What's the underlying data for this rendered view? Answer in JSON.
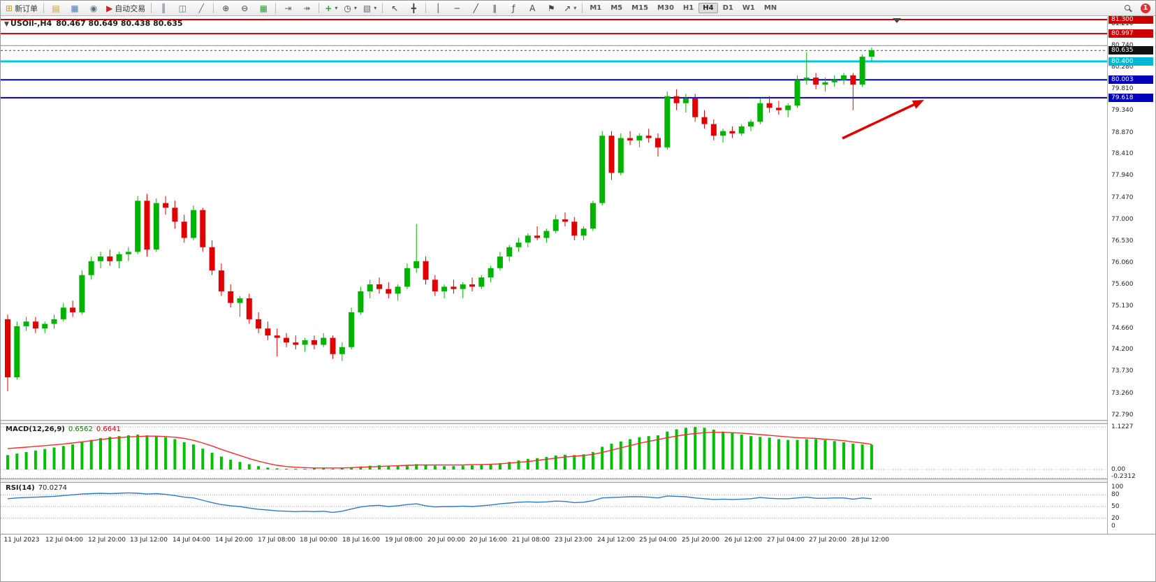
{
  "toolbar": {
    "new_order": "新订单",
    "autotrade": "自动交易",
    "timeframes": [
      "M1",
      "M5",
      "M15",
      "M30",
      "H1",
      "H4",
      "D1",
      "W1",
      "MN"
    ],
    "active_timeframe": "H4",
    "badge": "1"
  },
  "icons": {
    "new_order": "⊞",
    "market_watch": "▤",
    "charts": "▦",
    "navigator": "◉",
    "autotrade": "▶",
    "bars_mode": "║",
    "candle_mode": "◫",
    "line_mode": "╱",
    "zoom_in": "⊕",
    "zoom_out": "⊖",
    "tile": "▦",
    "autoscroll": "⇥",
    "shift": "↠",
    "indicators": "+",
    "periods": "◷",
    "templates": "▧",
    "cursor": "↖",
    "crosshair": "╋",
    "vline": "│",
    "hline": "─",
    "trendline": "╱",
    "channel": "∥",
    "fib": "ƒ",
    "text_tool": "A",
    "label_tool": "⚑",
    "arrows_tool": "↗",
    "caret": "▾",
    "window": "▼"
  },
  "chart": {
    "title": "USOil-,H4",
    "ohlc": "80.467 80.649 80.438 80.635",
    "price_axis_ticks": [
      "81.210",
      "80.740",
      "80.280",
      "79.810",
      "79.340",
      "78.870",
      "78.410",
      "77.940",
      "77.470",
      "77.000",
      "76.530",
      "76.060",
      "75.600",
      "75.130",
      "74.660",
      "74.200",
      "73.730",
      "73.260",
      "72.790"
    ],
    "level_lines": [
      {
        "price": 81.3,
        "label": "81.300",
        "line": "#cc0000",
        "bg": "#cc0000",
        "width": 2
      },
      {
        "price": 80.997,
        "label": "80.997",
        "line": "#cc0000",
        "bg": "#cc0000",
        "width": 2
      },
      {
        "price": 80.74,
        "label": "",
        "line": "#8a8a8a",
        "bg": "",
        "width": 1
      },
      {
        "price": 80.4,
        "label": "80.400",
        "line": "#00c8e6",
        "bg": "#00b8d4",
        "width": 3
      },
      {
        "price": 80.003,
        "label": "80.003",
        "line": "#0000bb",
        "bg": "#0000bb",
        "width": 2
      },
      {
        "price": 79.618,
        "label": "79.618",
        "line": "#0000bb",
        "bg": "#0000bb",
        "width": 2
      }
    ],
    "bid": {
      "price": 80.635,
      "label": "80.635",
      "bg": "#111111"
    }
  },
  "chart_data": {
    "type": "candlestick",
    "symbol": "USOil",
    "timeframe": "H4",
    "price_range": [
      72.79,
      81.36
    ],
    "colors": {
      "up": "#00b300",
      "down": "#e00000",
      "macd_hist": "#00c000",
      "macd_signal": "#ff2a2a",
      "rsi": "#3079c9",
      "dotted": "#999999"
    },
    "candles": [
      [
        74.85,
        74.95,
        73.3,
        73.6
      ],
      [
        73.6,
        74.8,
        73.55,
        74.7
      ],
      [
        74.7,
        74.9,
        74.6,
        74.8
      ],
      [
        74.8,
        74.9,
        74.55,
        74.65
      ],
      [
        74.65,
        74.8,
        74.55,
        74.75
      ],
      [
        74.75,
        74.95,
        74.65,
        74.85
      ],
      [
        74.85,
        75.2,
        74.8,
        75.1
      ],
      [
        75.1,
        75.25,
        74.9,
        75.0
      ],
      [
        75.0,
        75.9,
        74.95,
        75.8
      ],
      [
        75.8,
        76.2,
        75.7,
        76.1
      ],
      [
        76.1,
        76.3,
        75.95,
        76.2
      ],
      [
        76.2,
        76.35,
        76.0,
        76.1
      ],
      [
        76.1,
        76.3,
        75.95,
        76.25
      ],
      [
        76.25,
        76.4,
        76.1,
        76.3
      ],
      [
        76.3,
        77.5,
        76.25,
        77.4
      ],
      [
        77.4,
        77.55,
        76.2,
        76.35
      ],
      [
        76.35,
        77.45,
        76.3,
        77.35
      ],
      [
        77.35,
        77.5,
        77.1,
        77.25
      ],
      [
        77.25,
        77.4,
        76.8,
        76.95
      ],
      [
        76.95,
        77.1,
        76.5,
        76.6
      ],
      [
        76.6,
        77.3,
        76.55,
        77.2
      ],
      [
        77.2,
        77.25,
        76.3,
        76.4
      ],
      [
        76.4,
        76.55,
        75.8,
        75.9
      ],
      [
        75.9,
        76.05,
        75.35,
        75.45
      ],
      [
        75.45,
        75.6,
        75.1,
        75.2
      ],
      [
        75.2,
        75.35,
        74.9,
        75.3
      ],
      [
        75.3,
        75.4,
        74.75,
        74.85
      ],
      [
        74.85,
        75.0,
        74.55,
        74.65
      ],
      [
        74.65,
        74.8,
        74.4,
        74.5
      ],
      [
        74.5,
        74.65,
        74.05,
        74.45
      ],
      [
        74.45,
        74.55,
        74.25,
        74.35
      ],
      [
        74.35,
        74.5,
        74.2,
        74.3
      ],
      [
        74.3,
        74.45,
        74.15,
        74.4
      ],
      [
        74.4,
        74.5,
        74.2,
        74.3
      ],
      [
        74.3,
        74.55,
        74.25,
        74.45
      ],
      [
        74.45,
        74.5,
        74.0,
        74.1
      ],
      [
        74.1,
        74.35,
        73.95,
        74.25
      ],
      [
        74.25,
        75.1,
        74.2,
        75.0
      ],
      [
        75.0,
        75.55,
        74.95,
        75.45
      ],
      [
        75.45,
        75.7,
        75.3,
        75.6
      ],
      [
        75.6,
        75.75,
        75.4,
        75.5
      ],
      [
        75.5,
        75.65,
        75.3,
        75.4
      ],
      [
        75.4,
        75.6,
        75.25,
        75.55
      ],
      [
        75.55,
        76.05,
        75.5,
        75.95
      ],
      [
        75.95,
        76.9,
        75.85,
        76.1
      ],
      [
        76.1,
        76.2,
        75.6,
        75.7
      ],
      [
        75.7,
        75.8,
        75.35,
        75.45
      ],
      [
        75.45,
        75.6,
        75.3,
        75.55
      ],
      [
        75.55,
        75.7,
        75.4,
        75.5
      ],
      [
        75.5,
        75.65,
        75.3,
        75.6
      ],
      [
        75.6,
        75.75,
        75.45,
        75.55
      ],
      [
        75.55,
        75.8,
        75.5,
        75.75
      ],
      [
        75.75,
        76.0,
        75.65,
        75.95
      ],
      [
        75.95,
        76.3,
        75.9,
        76.2
      ],
      [
        76.2,
        76.45,
        76.1,
        76.4
      ],
      [
        76.4,
        76.6,
        76.3,
        76.5
      ],
      [
        76.5,
        76.7,
        76.4,
        76.65
      ],
      [
        76.65,
        76.85,
        76.55,
        76.6
      ],
      [
        76.6,
        76.8,
        76.5,
        76.75
      ],
      [
        76.75,
        77.1,
        76.7,
        77.0
      ],
      [
        77.0,
        77.15,
        76.85,
        76.95
      ],
      [
        76.95,
        77.05,
        76.55,
        76.65
      ],
      [
        76.65,
        76.85,
        76.55,
        76.8
      ],
      [
        76.8,
        77.4,
        76.75,
        77.35
      ],
      [
        77.35,
        78.9,
        77.3,
        78.8
      ],
      [
        78.8,
        78.9,
        77.85,
        78.0
      ],
      [
        78.0,
        78.85,
        77.95,
        78.75
      ],
      [
        78.75,
        78.9,
        78.6,
        78.7
      ],
      [
        78.7,
        78.85,
        78.55,
        78.8
      ],
      [
        78.8,
        78.95,
        78.65,
        78.75
      ],
      [
        78.75,
        78.85,
        78.35,
        78.55
      ],
      [
        78.55,
        79.75,
        78.5,
        79.65
      ],
      [
        79.65,
        79.8,
        79.35,
        79.5
      ],
      [
        79.5,
        79.7,
        79.3,
        79.6
      ],
      [
        79.6,
        79.7,
        79.1,
        79.2
      ],
      [
        79.2,
        79.35,
        78.95,
        79.05
      ],
      [
        79.05,
        79.15,
        78.7,
        78.8
      ],
      [
        78.8,
        78.95,
        78.65,
        78.9
      ],
      [
        78.9,
        79.0,
        78.75,
        78.85
      ],
      [
        78.85,
        79.05,
        78.8,
        79.0
      ],
      [
        79.0,
        79.15,
        78.9,
        79.1
      ],
      [
        79.1,
        79.6,
        79.05,
        79.5
      ],
      [
        79.5,
        79.65,
        79.3,
        79.4
      ],
      [
        79.4,
        79.55,
        79.25,
        79.35
      ],
      [
        79.35,
        79.5,
        79.2,
        79.45
      ],
      [
        79.45,
        80.1,
        79.4,
        80.0
      ],
      [
        80.0,
        80.6,
        79.9,
        80.05
      ],
      [
        80.05,
        80.15,
        79.8,
        79.9
      ],
      [
        79.9,
        80.05,
        79.75,
        79.95
      ],
      [
        79.95,
        80.1,
        79.85,
        80.0
      ],
      [
        80.0,
        80.15,
        79.9,
        80.1
      ],
      [
        80.1,
        80.15,
        79.35,
        79.9
      ],
      [
        79.9,
        80.55,
        79.85,
        80.5
      ],
      [
        80.5,
        80.7,
        80.4,
        80.64
      ]
    ],
    "macd": {
      "label": "MACD(12,26,9)",
      "value_main": "0.6562",
      "value_signal": "0.6641",
      "scale": {
        "max": "1.1227",
        "zero": "0.00",
        "min": "-0.2312"
      },
      "histogram": [
        0.38,
        0.42,
        0.46,
        0.5,
        0.54,
        0.58,
        0.62,
        0.66,
        0.72,
        0.78,
        0.83,
        0.86,
        0.88,
        0.9,
        0.92,
        0.9,
        0.88,
        0.85,
        0.8,
        0.72,
        0.66,
        0.55,
        0.44,
        0.34,
        0.26,
        0.2,
        0.14,
        0.09,
        0.05,
        0.03,
        0.02,
        0.02,
        0.02,
        0.03,
        0.03,
        0.02,
        0.03,
        0.05,
        0.08,
        0.1,
        0.11,
        0.1,
        0.1,
        0.12,
        0.14,
        0.12,
        0.1,
        0.09,
        0.09,
        0.1,
        0.11,
        0.12,
        0.14,
        0.17,
        0.2,
        0.24,
        0.28,
        0.3,
        0.33,
        0.37,
        0.39,
        0.38,
        0.4,
        0.46,
        0.6,
        0.68,
        0.74,
        0.8,
        0.85,
        0.88,
        0.9,
        1.0,
        1.06,
        1.1,
        1.12,
        1.1,
        1.05,
        1.0,
        0.96,
        0.92,
        0.88,
        0.86,
        0.84,
        0.8,
        0.78,
        0.78,
        0.8,
        0.8,
        0.78,
        0.75,
        0.72,
        0.68,
        0.66,
        0.656
      ],
      "signal": [
        0.55,
        0.57,
        0.59,
        0.61,
        0.63,
        0.65,
        0.67,
        0.7,
        0.73,
        0.76,
        0.79,
        0.82,
        0.84,
        0.86,
        0.87,
        0.88,
        0.88,
        0.87,
        0.85,
        0.82,
        0.77,
        0.7,
        0.62,
        0.53,
        0.45,
        0.37,
        0.29,
        0.22,
        0.16,
        0.11,
        0.08,
        0.06,
        0.05,
        0.04,
        0.04,
        0.04,
        0.04,
        0.05,
        0.06,
        0.07,
        0.08,
        0.09,
        0.1,
        0.11,
        0.12,
        0.12,
        0.12,
        0.12,
        0.12,
        0.12,
        0.13,
        0.13,
        0.14,
        0.15,
        0.17,
        0.19,
        0.21,
        0.24,
        0.27,
        0.3,
        0.33,
        0.35,
        0.37,
        0.4,
        0.45,
        0.51,
        0.57,
        0.63,
        0.69,
        0.74,
        0.79,
        0.84,
        0.88,
        0.92,
        0.95,
        0.97,
        0.98,
        0.98,
        0.97,
        0.96,
        0.94,
        0.92,
        0.9,
        0.88,
        0.86,
        0.84,
        0.83,
        0.82,
        0.8,
        0.78,
        0.76,
        0.73,
        0.7,
        0.664
      ]
    },
    "rsi": {
      "label": "RSI(14)",
      "value": "70.0274",
      "levels": [
        "100",
        "80",
        "50",
        "20",
        "0"
      ],
      "values": [
        70,
        72,
        73,
        74,
        75,
        76,
        78,
        80,
        82,
        83,
        84,
        83,
        84,
        85,
        84,
        82,
        83,
        81,
        78,
        74,
        72,
        66,
        60,
        55,
        52,
        50,
        46,
        43,
        41,
        39,
        38,
        37,
        38,
        37,
        38,
        35,
        38,
        44,
        49,
        52,
        53,
        50,
        52,
        55,
        57,
        52,
        49,
        50,
        50,
        51,
        50,
        52,
        54,
        57,
        59,
        61,
        62,
        61,
        62,
        64,
        63,
        60,
        61,
        65,
        72,
        73,
        74,
        75,
        75,
        74,
        72,
        77,
        76,
        75,
        72,
        70,
        68,
        69,
        68,
        69,
        70,
        73,
        71,
        70,
        70,
        72,
        74,
        71,
        71,
        72,
        72,
        69,
        72,
        70.03
      ]
    },
    "time_labels": [
      "11 Jul 2023",
      "12 Jul 04:00",
      "12 Jul 20:00",
      "13 Jul 12:00",
      "14 Jul 04:00",
      "14 Jul 20:00",
      "17 Jul 08:00",
      "18 Jul 00:00",
      "18 Jul 16:00",
      "19 Jul 08:00",
      "20 Jul 00:00",
      "20 Jul 16:00",
      "21 Jul 08:00",
      "23 Jul 23:00",
      "24 Jul 12:00",
      "25 Jul 04:00",
      "25 Jul 20:00",
      "26 Jul 12:00",
      "27 Jul 04:00",
      "27 Jul 20:00",
      "28 Jul 12:00"
    ],
    "annotations": [
      {
        "type": "arrow",
        "color": "#e00000",
        "direction": "up-right"
      }
    ]
  }
}
